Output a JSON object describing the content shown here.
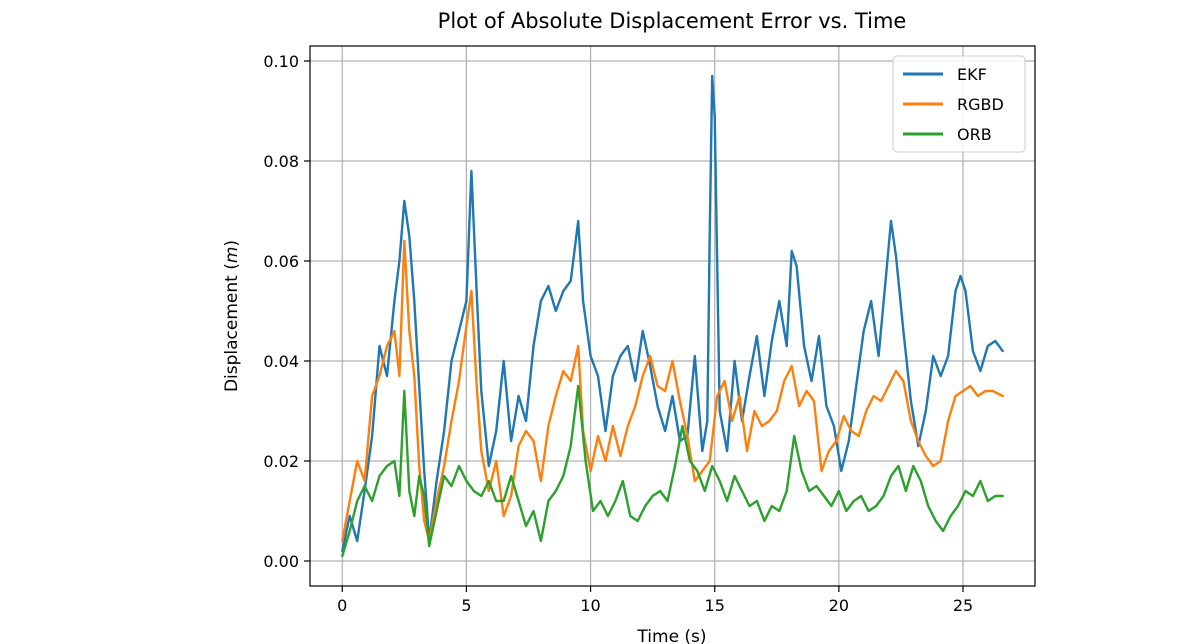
{
  "chart_data": {
    "type": "line",
    "title": "Plot of Absolute Displacement Error vs. Time",
    "xlabel": "Time (s)",
    "ylabel_prefix": "Displacement (",
    "ylabel_unit": "m",
    "ylabel_suffix": ")",
    "xlim": [
      -1.3,
      27.9
    ],
    "ylim": [
      -0.005,
      0.103
    ],
    "xticks": [
      0,
      5,
      10,
      15,
      20,
      25
    ],
    "yticks": [
      0.0,
      0.02,
      0.04,
      0.06,
      0.08,
      0.1
    ],
    "xtick_labels": [
      "0",
      "5",
      "10",
      "15",
      "20",
      "25"
    ],
    "ytick_labels": [
      "0.00",
      "0.02",
      "0.04",
      "0.06",
      "0.08",
      "0.10"
    ],
    "grid": true,
    "legend_position": "upper right",
    "series": [
      {
        "name": "EKF",
        "color": "#1f77b4",
        "x": [
          0,
          0.3,
          0.6,
          0.9,
          1.2,
          1.5,
          1.8,
          2.1,
          2.3,
          2.5,
          2.7,
          2.9,
          3.1,
          3.3,
          3.5,
          3.8,
          4.1,
          4.4,
          4.7,
          5.0,
          5.2,
          5.4,
          5.6,
          5.9,
          6.2,
          6.5,
          6.8,
          7.1,
          7.4,
          7.7,
          8.0,
          8.3,
          8.6,
          8.9,
          9.2,
          9.5,
          9.7,
          10.0,
          10.3,
          10.6,
          10.9,
          11.2,
          11.5,
          11.8,
          12.1,
          12.4,
          12.7,
          13.0,
          13.3,
          13.6,
          13.9,
          14.2,
          14.5,
          14.7,
          14.8,
          14.9,
          15.0,
          15.2,
          15.5,
          15.8,
          16.1,
          16.4,
          16.7,
          17.0,
          17.3,
          17.6,
          17.9,
          18.1,
          18.3,
          18.6,
          18.9,
          19.2,
          19.5,
          19.8,
          20.1,
          20.4,
          20.7,
          21.0,
          21.3,
          21.6,
          21.9,
          22.1,
          22.3,
          22.6,
          22.9,
          23.2,
          23.5,
          23.8,
          24.1,
          24.4,
          24.7,
          24.9,
          25.1,
          25.4,
          25.7,
          26.0,
          26.3,
          26.6
        ],
        "y": [
          0.002,
          0.009,
          0.004,
          0.014,
          0.025,
          0.043,
          0.037,
          0.052,
          0.06,
          0.072,
          0.065,
          0.052,
          0.035,
          0.018,
          0.004,
          0.016,
          0.026,
          0.04,
          0.046,
          0.052,
          0.078,
          0.055,
          0.034,
          0.019,
          0.026,
          0.04,
          0.024,
          0.033,
          0.028,
          0.043,
          0.052,
          0.055,
          0.05,
          0.054,
          0.056,
          0.068,
          0.052,
          0.041,
          0.037,
          0.026,
          0.037,
          0.041,
          0.043,
          0.036,
          0.046,
          0.039,
          0.031,
          0.026,
          0.033,
          0.024,
          0.025,
          0.041,
          0.022,
          0.028,
          0.065,
          0.097,
          0.089,
          0.03,
          0.022,
          0.04,
          0.028,
          0.037,
          0.045,
          0.033,
          0.044,
          0.052,
          0.043,
          0.062,
          0.059,
          0.043,
          0.036,
          0.045,
          0.031,
          0.027,
          0.018,
          0.024,
          0.035,
          0.046,
          0.052,
          0.041,
          0.057,
          0.068,
          0.061,
          0.046,
          0.032,
          0.023,
          0.03,
          0.041,
          0.037,
          0.041,
          0.054,
          0.057,
          0.054,
          0.042,
          0.038,
          0.043,
          0.044,
          0.042
        ]
      },
      {
        "name": "RGBD",
        "color": "#ff7f0e",
        "x": [
          0,
          0.3,
          0.6,
          0.9,
          1.2,
          1.5,
          1.8,
          2.1,
          2.3,
          2.5,
          2.7,
          2.9,
          3.1,
          3.3,
          3.5,
          3.8,
          4.1,
          4.4,
          4.7,
          5.0,
          5.2,
          5.4,
          5.6,
          5.9,
          6.2,
          6.5,
          6.8,
          7.1,
          7.4,
          7.7,
          8.0,
          8.3,
          8.6,
          8.9,
          9.2,
          9.5,
          9.7,
          10.0,
          10.3,
          10.6,
          10.9,
          11.2,
          11.5,
          11.8,
          12.1,
          12.4,
          12.7,
          13.0,
          13.3,
          13.6,
          13.9,
          14.2,
          14.5,
          14.8,
          15.1,
          15.4,
          15.7,
          16.0,
          16.3,
          16.6,
          16.9,
          17.2,
          17.5,
          17.8,
          18.1,
          18.4,
          18.7,
          19.0,
          19.3,
          19.6,
          19.9,
          20.2,
          20.5,
          20.8,
          21.1,
          21.4,
          21.7,
          22.0,
          22.3,
          22.6,
          22.9,
          23.2,
          23.5,
          23.8,
          24.1,
          24.4,
          24.7,
          25.0,
          25.3,
          25.6,
          25.9,
          26.2,
          26.6
        ],
        "y": [
          0.004,
          0.012,
          0.02,
          0.016,
          0.033,
          0.037,
          0.043,
          0.046,
          0.037,
          0.064,
          0.046,
          0.037,
          0.019,
          0.008,
          0.004,
          0.012,
          0.019,
          0.028,
          0.036,
          0.047,
          0.054,
          0.036,
          0.022,
          0.014,
          0.02,
          0.009,
          0.013,
          0.023,
          0.026,
          0.024,
          0.016,
          0.027,
          0.033,
          0.038,
          0.036,
          0.043,
          0.026,
          0.018,
          0.025,
          0.02,
          0.027,
          0.021,
          0.027,
          0.031,
          0.037,
          0.041,
          0.035,
          0.034,
          0.04,
          0.032,
          0.025,
          0.016,
          0.018,
          0.02,
          0.033,
          0.036,
          0.028,
          0.033,
          0.022,
          0.03,
          0.027,
          0.028,
          0.03,
          0.036,
          0.039,
          0.031,
          0.034,
          0.032,
          0.018,
          0.022,
          0.024,
          0.029,
          0.026,
          0.025,
          0.03,
          0.033,
          0.032,
          0.035,
          0.038,
          0.036,
          0.028,
          0.024,
          0.021,
          0.019,
          0.02,
          0.028,
          0.033,
          0.034,
          0.035,
          0.033,
          0.034,
          0.034,
          0.033
        ]
      },
      {
        "name": "ORB",
        "color": "#2ca02c",
        "x": [
          0,
          0.3,
          0.6,
          0.9,
          1.2,
          1.5,
          1.8,
          2.1,
          2.3,
          2.5,
          2.7,
          2.9,
          3.1,
          3.3,
          3.5,
          3.8,
          4.1,
          4.4,
          4.7,
          5.0,
          5.3,
          5.6,
          5.9,
          6.2,
          6.5,
          6.8,
          7.1,
          7.4,
          7.7,
          8.0,
          8.3,
          8.6,
          8.9,
          9.2,
          9.5,
          9.8,
          10.1,
          10.4,
          10.7,
          11.0,
          11.3,
          11.6,
          11.9,
          12.2,
          12.5,
          12.8,
          13.1,
          13.4,
          13.7,
          14.0,
          14.3,
          14.6,
          14.9,
          15.2,
          15.5,
          15.8,
          16.1,
          16.4,
          16.7,
          17.0,
          17.3,
          17.6,
          17.9,
          18.2,
          18.5,
          18.8,
          19.1,
          19.4,
          19.7,
          20.0,
          20.3,
          20.6,
          20.9,
          21.2,
          21.5,
          21.8,
          22.1,
          22.4,
          22.7,
          23.0,
          23.3,
          23.6,
          23.9,
          24.2,
          24.5,
          24.8,
          25.1,
          25.4,
          25.7,
          26.0,
          26.3,
          26.6
        ],
        "y": [
          0.001,
          0.006,
          0.012,
          0.015,
          0.012,
          0.017,
          0.019,
          0.02,
          0.013,
          0.034,
          0.014,
          0.009,
          0.017,
          0.013,
          0.003,
          0.01,
          0.017,
          0.015,
          0.019,
          0.016,
          0.014,
          0.013,
          0.016,
          0.012,
          0.012,
          0.017,
          0.012,
          0.007,
          0.01,
          0.004,
          0.012,
          0.014,
          0.017,
          0.023,
          0.035,
          0.02,
          0.01,
          0.012,
          0.009,
          0.012,
          0.016,
          0.009,
          0.008,
          0.011,
          0.013,
          0.014,
          0.012,
          0.019,
          0.027,
          0.02,
          0.018,
          0.014,
          0.019,
          0.016,
          0.012,
          0.017,
          0.014,
          0.011,
          0.012,
          0.008,
          0.011,
          0.01,
          0.014,
          0.025,
          0.018,
          0.014,
          0.015,
          0.013,
          0.011,
          0.014,
          0.01,
          0.012,
          0.013,
          0.01,
          0.011,
          0.013,
          0.017,
          0.019,
          0.014,
          0.019,
          0.016,
          0.011,
          0.008,
          0.006,
          0.009,
          0.011,
          0.014,
          0.013,
          0.016,
          0.012,
          0.013,
          0.013
        ]
      }
    ]
  }
}
